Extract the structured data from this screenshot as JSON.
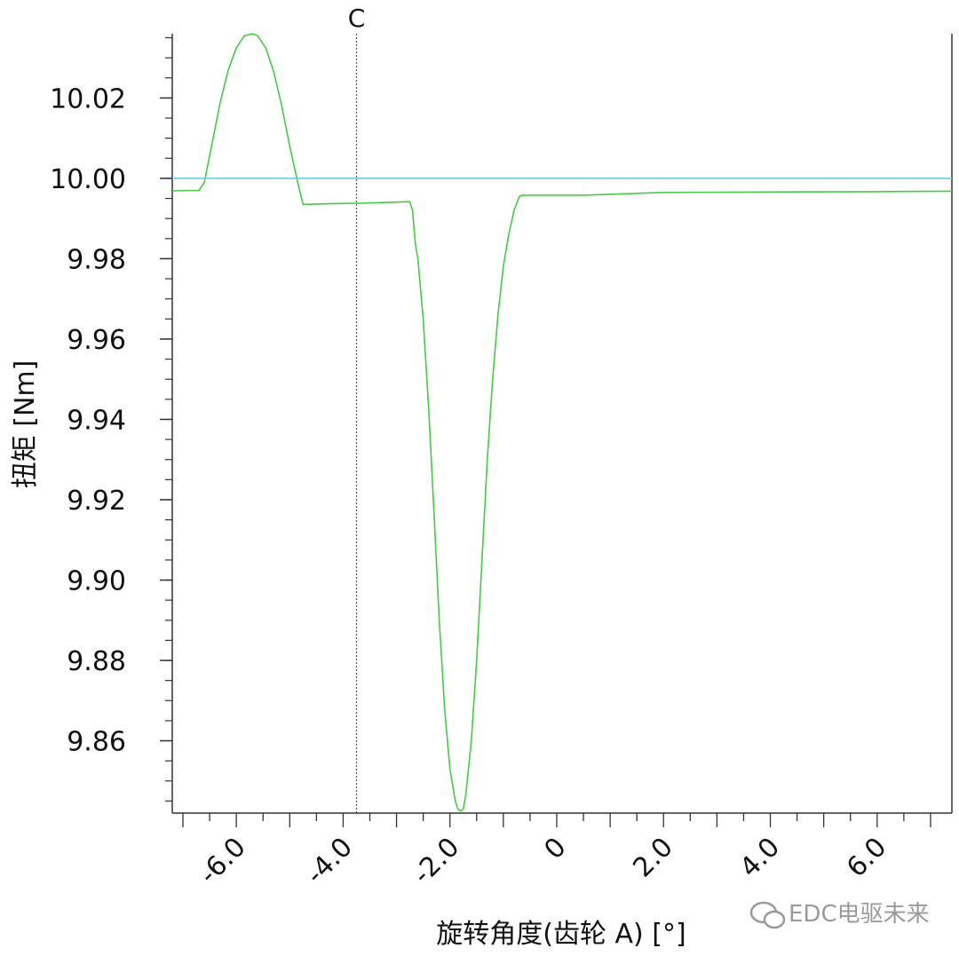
{
  "chart_data": {
    "type": "line",
    "title": "",
    "xlabel": "旋转角度(齿轮 A) [°]",
    "ylabel": "扭矩 [Nm]",
    "xlim": [
      -7.2,
      7.4
    ],
    "ylim": [
      9.842,
      10.036
    ],
    "x_ticks": [
      -6.0,
      -4.0,
      -2.0,
      0,
      2.0,
      4.0,
      6.0
    ],
    "x_tick_labels": [
      "-6.0",
      "-4.0",
      "-2.0",
      "0",
      "2.0",
      "4.0",
      "6.0"
    ],
    "y_ticks": [
      9.86,
      9.88,
      9.9,
      9.92,
      9.94,
      9.96,
      9.98,
      10.0,
      10.02
    ],
    "y_tick_labels": [
      "9.86",
      "9.88",
      "9.90",
      "9.92",
      "9.94",
      "9.96",
      "9.98",
      "10.00",
      "10.02"
    ],
    "grid": false,
    "colors": {
      "torque": "#44cc44",
      "reference": "#66cce6",
      "marker": "#555555",
      "axis": "#333333"
    },
    "series": [
      {
        "x": [
          -7.2,
          -6.7,
          -6.6,
          -6.45,
          -6.3,
          -6.15,
          -6.0,
          -5.85,
          -5.7,
          -5.6,
          -5.45,
          -5.3,
          -5.15,
          -5.0,
          -4.85,
          -4.75,
          -4.2,
          -3.7,
          -3.2,
          -2.75,
          -2.7,
          -2.65,
          -2.6,
          -2.5,
          -2.4,
          -2.3,
          -2.2,
          -2.1,
          -2.0,
          -1.9,
          -1.85,
          -1.8,
          -1.75,
          -1.7,
          -1.6,
          -1.5,
          -1.4,
          -1.3,
          -1.2,
          -1.1,
          -1.0,
          -0.9,
          -0.8,
          -0.7,
          -0.65,
          0.5,
          2.0,
          4.0,
          6.0,
          7.4
        ],
        "y": [
          9.9969,
          9.997,
          9.999,
          10.009,
          10.019,
          10.027,
          10.0325,
          10.0355,
          10.036,
          10.0355,
          10.0325,
          10.0265,
          10.018,
          10.008,
          9.999,
          9.9935,
          9.9937,
          9.9938,
          9.994,
          9.9942,
          9.992,
          9.984,
          9.98,
          9.965,
          9.943,
          9.917,
          9.89,
          9.868,
          9.853,
          9.845,
          9.843,
          9.8425,
          9.843,
          9.847,
          9.86,
          9.88,
          9.905,
          9.93,
          9.95,
          9.966,
          9.978,
          9.986,
          9.992,
          9.9955,
          9.9958,
          9.9958,
          9.9965,
          9.9966,
          9.9967,
          9.9968
        ]
      },
      {
        "x": [
          -7.2,
          7.4
        ],
        "y": [
          10.0,
          10.0
        ]
      }
    ],
    "annotations": [
      {
        "type": "vline",
        "x": -3.75,
        "label": "C"
      }
    ]
  },
  "watermark": {
    "text": "EDC电驱未来"
  }
}
